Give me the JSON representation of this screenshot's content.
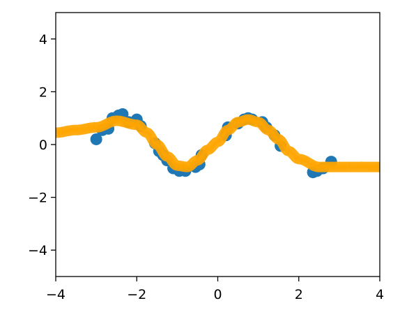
{
  "chart_data": {
    "type": "scatter",
    "title": "",
    "xlabel": "",
    "ylabel": "",
    "xlim": [
      -4,
      4
    ],
    "ylim": [
      -5,
      5
    ],
    "x_ticks": [
      -4,
      -2,
      0,
      2,
      4
    ],
    "y_ticks": [
      -4,
      -2,
      0,
      2,
      4
    ],
    "x_tick_labels": [
      "−4",
      "−2",
      "0",
      "2",
      "4"
    ],
    "y_tick_labels": [
      "−4",
      "−2",
      "0",
      "2",
      "4"
    ],
    "grid": false,
    "series": [
      {
        "kind": "scatter",
        "color": "#1f77b4",
        "x": [
          -3.0,
          -2.85,
          -2.7,
          -2.6,
          -2.45,
          -2.35,
          -2.2,
          -2.0,
          -1.9,
          -1.55,
          -1.45,
          -1.35,
          -1.25,
          -1.1,
          -0.95,
          -0.8,
          -0.55,
          -0.45,
          -0.4,
          0.2,
          0.25,
          0.5,
          0.65,
          0.75,
          0.85,
          1.1,
          1.2,
          1.4,
          1.55,
          2.35,
          2.45,
          2.6,
          2.8
        ],
        "y": [
          0.2,
          0.55,
          0.6,
          1.0,
          1.1,
          1.15,
          0.85,
          0.95,
          0.7,
          0.05,
          -0.25,
          -0.4,
          -0.6,
          -0.9,
          -1.0,
          -1.0,
          -0.85,
          -0.75,
          -0.4,
          0.35,
          0.65,
          0.8,
          0.95,
          1.0,
          0.95,
          0.85,
          0.65,
          0.35,
          -0.05,
          -1.05,
          -1.0,
          -0.9,
          -0.65
        ]
      },
      {
        "kind": "sample-lines",
        "color": "#ffa500",
        "x": [
          -4.0,
          -3.5,
          -3.0,
          -2.5,
          -2.0,
          -1.75,
          -1.5,
          -1.25,
          -1.0,
          -0.75,
          -0.5,
          -0.25,
          0.0,
          0.25,
          0.5,
          0.75,
          1.0,
          1.25,
          1.5,
          1.75,
          2.0,
          2.5,
          3.0,
          3.5,
          4.0
        ],
        "y": [
          0.45,
          0.55,
          0.65,
          0.9,
          0.75,
          0.45,
          0.0,
          -0.45,
          -0.8,
          -0.85,
          -0.6,
          -0.2,
          0.1,
          0.55,
          0.85,
          0.95,
          0.85,
          0.55,
          0.2,
          -0.25,
          -0.55,
          -0.85,
          -0.85,
          -0.85,
          -0.85
        ]
      }
    ]
  }
}
